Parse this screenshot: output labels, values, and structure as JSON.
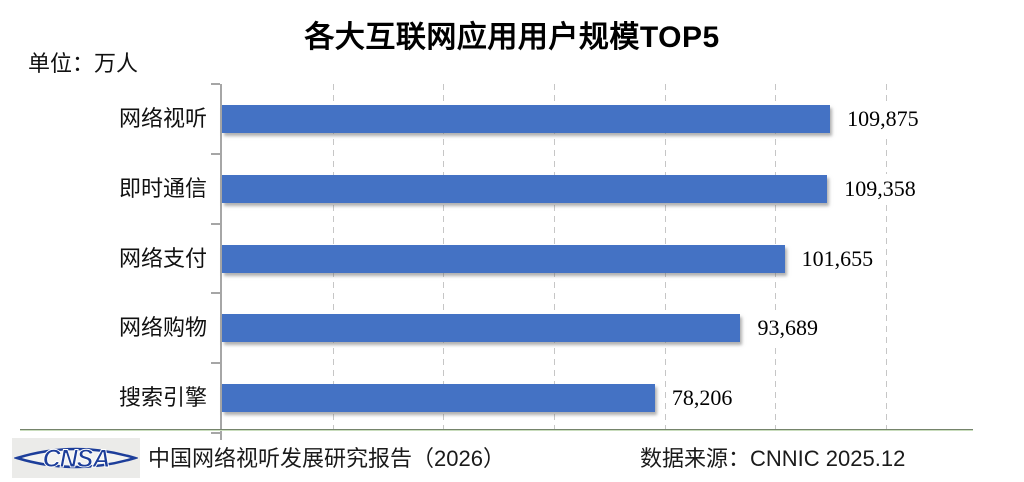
{
  "title": "各大互联网应用用户规模TOP5",
  "unit_label": "单位：万人",
  "chart_data": {
    "type": "bar",
    "orientation": "horizontal",
    "title": "各大互联网应用用户规模TOP5",
    "unit": "万人",
    "categories": [
      "网络视听",
      "即时通信",
      "网络支付",
      "网络购物",
      "搜索引擎"
    ],
    "values": [
      109875,
      109358,
      101655,
      93689,
      78206
    ],
    "value_labels": [
      "109,875",
      "109,358",
      "101,655",
      "93,689",
      "78,206"
    ],
    "xlim": [
      0,
      135700
    ],
    "gridline_values": [
      20000,
      40000,
      60000,
      80000,
      100000,
      120000
    ],
    "grid": "dashed-vertical",
    "legend": "none",
    "bar_color": "#4472C4"
  },
  "footer": {
    "logo_text": "CNSA",
    "report_label": "中国网络视听发展研究报告（2026）",
    "source_label": "数据来源：CNNIC 2025.12"
  },
  "colors": {
    "bar": "#4472C4",
    "axis": "#a6a6a6",
    "gridline": "#c6c6c6",
    "title_text": "#000000",
    "logo_blue": "#1d3e9a",
    "divider_top": "#75846b",
    "divider_bottom": "#c9ddbd"
  }
}
